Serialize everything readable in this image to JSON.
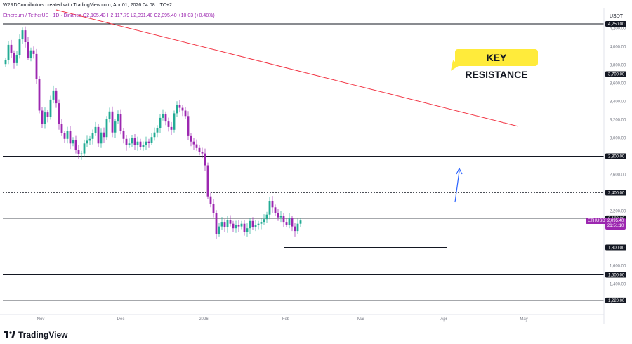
{
  "header": {
    "credit": "W2RDContributors created with TradingView.com, Apr 01, 2026 04:08 UTC+2",
    "symbol_line": "Ethereum / TetherUS · 1D · Binance  O2,105.43  H2,117.79  L2,091.40  C2,095.40  +10.03 (+0.48%)"
  },
  "currency": "USDT",
  "annotation": {
    "text": "KEY RESISTANCE",
    "color": "#ffeb3b"
  },
  "last_price": {
    "symbol": "ETHUSDT",
    "price": "2,095.40",
    "countdown": "21:51:10",
    "color": "#9c27b0"
  },
  "logo": {
    "text": "TradingView"
  },
  "colors": {
    "up": "#22ab94",
    "down": "#9c27b0",
    "trendline": "#f23645",
    "arrow": "#2962ff",
    "level": "#131722"
  },
  "chart_data": {
    "type": "candlestick",
    "y_axis": {
      "ylim": [
        1100,
        4400
      ],
      "ticks": [
        1400,
        1600,
        2200,
        2600,
        3000,
        3200,
        3400,
        3600,
        3800,
        4000,
        4200
      ]
    },
    "x_axis": {
      "tick_labels": [
        "Nov",
        "Dec",
        "2026",
        "Feb",
        "Mar",
        "Apr",
        "May"
      ]
    },
    "levels": [
      {
        "price": 4250,
        "label": "4,250.00",
        "style": "solid"
      },
      {
        "price": 3700,
        "label": "3,700.00",
        "style": "solid"
      },
      {
        "price": 2800,
        "label": "2,800.00",
        "style": "solid"
      },
      {
        "price": 2400,
        "label": "2,400.00",
        "style": "dotted"
      },
      {
        "price": 2120,
        "label": "2,120.00",
        "style": "solid"
      },
      {
        "price": 1800,
        "label": "1,800.00",
        "style": "solid",
        "partial": true
      },
      {
        "price": 1500,
        "label": "1,500.00",
        "style": "solid"
      },
      {
        "price": 1220,
        "label": "1,220.00",
        "style": "solid"
      }
    ],
    "closes": [
      3850,
      4020,
      3930,
      3820,
      3910,
      4080,
      4180,
      4050,
      3880,
      3960,
      3920,
      3650,
      3300,
      3150,
      3280,
      3230,
      3420,
      3520,
      3380,
      3150,
      3050,
      2990,
      3080,
      2940,
      2980,
      2870,
      2820,
      2830,
      2940,
      2970,
      2990,
      3050,
      3120,
      2940,
      3060,
      3010,
      3210,
      3290,
      3060,
      3180,
      3260,
      3080,
      2990,
      2920,
      2940,
      3000,
      2920,
      2960,
      2900,
      2920,
      2960,
      2950,
      3010,
      3060,
      3110,
      3220,
      3260,
      3180,
      3120,
      3090,
      3270,
      3360,
      3330,
      3300,
      3240,
      3020,
      2960,
      2930,
      2890,
      2850,
      2830,
      2700,
      2360,
      2280,
      2180,
      1950,
      2030,
      2080,
      2020,
      2100,
      2060,
      2010,
      2050,
      2030,
      2060,
      1970,
      2010,
      2090,
      2020,
      2050,
      2060,
      2080,
      2110,
      2160,
      2310,
      2240,
      2180,
      2130,
      2150,
      2080,
      2050,
      2120,
      2030,
      1980,
      2060,
      2095
    ]
  }
}
